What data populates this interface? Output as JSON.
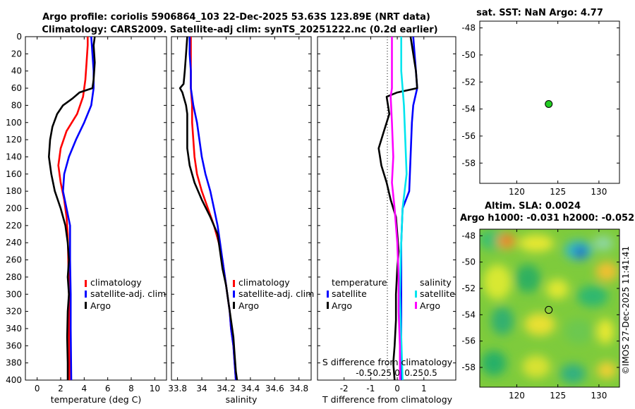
{
  "titles": {
    "line1": "Argo profile: coriolis 5906864_103 22-Dec-2025 53.63S 123.89E (NRT data)",
    "line2": "Climatology: CARS2009. Satellite-adj clim: synTS_20251222.nc (0.2d earlier)",
    "sst": "sat. SST: NaN Argo: 4.77",
    "sla1": "Altim. SLA: 0.0024",
    "sla2": "Argo h1000: -0.031 h2000: -0.052",
    "credit": "©IMOS 27-Dec-2025 11:41:41"
  },
  "colors": {
    "climatology": "#ff0000",
    "satellite": "#0000ff",
    "argo": "#000000",
    "sal_satellite": "#00e5ee",
    "sal_argo": "#ff00ff",
    "marker": "#22cc22"
  },
  "chart_data": [
    {
      "type": "line",
      "name": "temperature",
      "xlabel": "temperature (deg C)",
      "ylabel": "",
      "xlim": [
        -1,
        11
      ],
      "ylim": [
        400,
        0
      ],
      "xticks": [
        0,
        2,
        4,
        6,
        8,
        10
      ],
      "yticks": [
        0,
        20,
        40,
        60,
        80,
        100,
        120,
        140,
        160,
        180,
        200,
        220,
        240,
        260,
        280,
        300,
        320,
        340,
        360,
        380,
        400
      ],
      "legend": [
        "climatology",
        "satellite-adj. clim",
        "Argo"
      ],
      "series": [
        {
          "name": "climatology",
          "color": "#ff0000",
          "points": [
            [
              4.3,
              0
            ],
            [
              4.3,
              10
            ],
            [
              4.2,
              30
            ],
            [
              4.1,
              50
            ],
            [
              3.9,
              70
            ],
            [
              3.4,
              90
            ],
            [
              2.5,
              110
            ],
            [
              2.0,
              130
            ],
            [
              1.8,
              150
            ],
            [
              2.0,
              170
            ],
            [
              2.3,
              190
            ],
            [
              2.5,
              210
            ],
            [
              2.6,
              230
            ],
            [
              2.65,
              260
            ],
            [
              2.7,
              300
            ],
            [
              2.7,
              340
            ],
            [
              2.75,
              400
            ]
          ]
        },
        {
          "name": "satellite-adj. clim",
          "color": "#0000ff",
          "points": [
            [
              4.6,
              0
            ],
            [
              4.7,
              20
            ],
            [
              4.8,
              40
            ],
            [
              4.8,
              60
            ],
            [
              4.6,
              80
            ],
            [
              4.0,
              100
            ],
            [
              3.3,
              120
            ],
            [
              2.7,
              140
            ],
            [
              2.3,
              160
            ],
            [
              2.2,
              180
            ],
            [
              2.5,
              200
            ],
            [
              2.8,
              220
            ],
            [
              2.8,
              260
            ],
            [
              2.85,
              300
            ],
            [
              2.85,
              340
            ],
            [
              2.9,
              400
            ]
          ]
        },
        {
          "name": "Argo",
          "color": "#000000",
          "points": [
            [
              4.9,
              0
            ],
            [
              4.8,
              10
            ],
            [
              4.9,
              30
            ],
            [
              4.8,
              50
            ],
            [
              4.7,
              60
            ],
            [
              3.6,
              65
            ],
            [
              3.0,
              72
            ],
            [
              2.2,
              80
            ],
            [
              1.7,
              90
            ],
            [
              1.3,
              105
            ],
            [
              1.1,
              120
            ],
            [
              1.0,
              140
            ],
            [
              1.2,
              160
            ],
            [
              1.5,
              180
            ],
            [
              2.0,
              200
            ],
            [
              2.4,
              220
            ],
            [
              2.6,
              240
            ],
            [
              2.7,
              260
            ],
            [
              2.6,
              280
            ],
            [
              2.7,
              300
            ],
            [
              2.6,
              320
            ],
            [
              2.55,
              350
            ],
            [
              2.6,
              380
            ],
            [
              2.6,
              400
            ]
          ]
        }
      ]
    },
    {
      "type": "line",
      "name": "salinity",
      "xlabel": "salinity",
      "ylabel": "",
      "xlim": [
        33.75,
        34.9
      ],
      "ylim": [
        400,
        0
      ],
      "xticks": [
        33.8,
        34,
        34.2,
        34.4,
        34.6,
        34.8
      ],
      "legend": [
        "climatology",
        "satellite-adj. clim",
        "Argo"
      ],
      "series": [
        {
          "name": "climatology",
          "color": "#ff0000",
          "points": [
            [
              33.91,
              0
            ],
            [
              33.91,
              20
            ],
            [
              33.91,
              40
            ],
            [
              33.91,
              60
            ],
            [
              33.92,
              80
            ],
            [
              33.92,
              100
            ],
            [
              33.93,
              120
            ],
            [
              33.94,
              140
            ],
            [
              33.96,
              160
            ],
            [
              34.0,
              180
            ],
            [
              34.05,
              200
            ],
            [
              34.1,
              220
            ],
            [
              34.14,
              240
            ],
            [
              34.17,
              260
            ],
            [
              34.19,
              280
            ],
            [
              34.21,
              300
            ],
            [
              34.23,
              320
            ],
            [
              34.24,
              340
            ],
            [
              34.26,
              360
            ],
            [
              34.27,
              380
            ],
            [
              34.28,
              400
            ]
          ]
        },
        {
          "name": "satellite-adj. clim",
          "color": "#0000ff",
          "points": [
            [
              33.9,
              0
            ],
            [
              33.9,
              20
            ],
            [
              33.91,
              40
            ],
            [
              33.91,
              60
            ],
            [
              33.93,
              80
            ],
            [
              33.96,
              100
            ],
            [
              33.98,
              120
            ],
            [
              34.0,
              140
            ],
            [
              34.03,
              160
            ],
            [
              34.07,
              180
            ],
            [
              34.1,
              200
            ],
            [
              34.13,
              220
            ],
            [
              34.15,
              240
            ],
            [
              34.17,
              260
            ],
            [
              34.19,
              280
            ],
            [
              34.21,
              300
            ],
            [
              34.23,
              320
            ],
            [
              34.24,
              340
            ],
            [
              34.26,
              360
            ],
            [
              34.27,
              380
            ],
            [
              34.28,
              400
            ]
          ]
        },
        {
          "name": "Argo",
          "color": "#000000",
          "points": [
            [
              33.88,
              0
            ],
            [
              33.87,
              20
            ],
            [
              33.86,
              40
            ],
            [
              33.85,
              55
            ],
            [
              33.82,
              60
            ],
            [
              33.84,
              65
            ],
            [
              33.87,
              80
            ],
            [
              33.88,
              90
            ],
            [
              33.88,
              110
            ],
            [
              33.88,
              130
            ],
            [
              33.9,
              150
            ],
            [
              33.94,
              170
            ],
            [
              34.0,
              190
            ],
            [
              34.07,
              210
            ],
            [
              34.13,
              230
            ],
            [
              34.15,
              250
            ],
            [
              34.17,
              270
            ],
            [
              34.2,
              290
            ],
            [
              34.22,
              310
            ],
            [
              34.24,
              330
            ],
            [
              34.26,
              350
            ],
            [
              34.27,
              370
            ],
            [
              34.28,
              390
            ],
            [
              34.29,
              400
            ]
          ]
        }
      ]
    },
    {
      "type": "line",
      "name": "difference",
      "xlabel": "T difference from climatology",
      "xlabel_top": "S difference from climatology",
      "xlim": [
        -3,
        2.2
      ],
      "ylim": [
        400,
        0
      ],
      "xticks": [
        -2,
        -1,
        0,
        1
      ],
      "xticklabels": [
        "-2",
        "-1",
        "0",
        "1"
      ],
      "sxticklabels": [
        "-0.5",
        "-0.25",
        "0",
        "0.25",
        "0.5"
      ],
      "legend_t": {
        "header": "temperature",
        "items": [
          "satellite",
          "Argo"
        ]
      },
      "legend_s": {
        "header": "salinity",
        "items": [
          "satellite",
          "Argo"
        ]
      },
      "series": [
        {
          "name": "T satellite",
          "color": "#0000ff",
          "points": [
            [
              0.6,
              0
            ],
            [
              0.65,
              20
            ],
            [
              0.7,
              40
            ],
            [
              0.75,
              60
            ],
            [
              0.6,
              80
            ],
            [
              0.55,
              100
            ],
            [
              0.5,
              140
            ],
            [
              0.45,
              180
            ],
            [
              0.2,
              200
            ],
            [
              0.15,
              240
            ],
            [
              0.15,
              300
            ],
            [
              0.15,
              400
            ]
          ]
        },
        {
          "name": "T Argo",
          "color": "#000000",
          "points": [
            [
              0.5,
              0
            ],
            [
              0.6,
              20
            ],
            [
              0.7,
              40
            ],
            [
              0.75,
              60
            ],
            [
              0.0,
              65
            ],
            [
              -0.4,
              70
            ],
            [
              -0.3,
              90
            ],
            [
              -0.5,
              110
            ],
            [
              -0.7,
              130
            ],
            [
              -0.6,
              150
            ],
            [
              -0.4,
              170
            ],
            [
              -0.25,
              190
            ],
            [
              -0.05,
              210
            ],
            [
              0.0,
              230
            ],
            [
              0.05,
              250
            ],
            [
              0.0,
              270
            ],
            [
              -0.05,
              300
            ],
            [
              -0.05,
              330
            ],
            [
              -0.1,
              360
            ],
            [
              -0.15,
              380
            ],
            [
              -0.1,
              400
            ]
          ]
        },
        {
          "name": "S satellite",
          "color": "#00e5ee",
          "points": [
            [
              0.15,
              0
            ],
            [
              0.15,
              40
            ],
            [
              0.25,
              80
            ],
            [
              0.3,
              120
            ],
            [
              0.35,
              160
            ],
            [
              0.2,
              200
            ],
            [
              0.15,
              240
            ],
            [
              0.1,
              300
            ],
            [
              0.15,
              350
            ],
            [
              0.2,
              400
            ]
          ]
        },
        {
          "name": "S Argo",
          "color": "#ff00ff",
          "points": [
            [
              -0.2,
              0
            ],
            [
              -0.2,
              40
            ],
            [
              -0.2,
              60
            ],
            [
              -0.25,
              70
            ],
            [
              -0.2,
              100
            ],
            [
              -0.15,
              140
            ],
            [
              -0.2,
              170
            ],
            [
              -0.1,
              200
            ],
            [
              0.0,
              240
            ],
            [
              0.05,
              280
            ],
            [
              0.05,
              320
            ],
            [
              0.1,
              360
            ],
            [
              0.1,
              400
            ]
          ]
        }
      ]
    },
    {
      "type": "scatter",
      "name": "sst-map",
      "title": "sat. SST: NaN Argo: 4.77",
      "xlim": [
        115.5,
        132.5
      ],
      "ylim": [
        -59.5,
        -47.5
      ],
      "xticks": [
        120,
        125,
        130
      ],
      "yticks": [
        -48,
        -50,
        -52,
        -54,
        -56,
        -58
      ],
      "points": [
        [
          123.89,
          -53.63
        ]
      ]
    },
    {
      "type": "heatmap",
      "name": "sla-map",
      "title": "Altim. SLA: 0.0024",
      "xlim": [
        115.5,
        132.5
      ],
      "ylim": [
        -59.5,
        -47.5
      ],
      "xticks": [
        120,
        125,
        130
      ],
      "yticks": [
        -48,
        -50,
        -52,
        -54,
        -56,
        -58
      ],
      "points": [
        [
          123.89,
          -53.63
        ]
      ]
    }
  ]
}
